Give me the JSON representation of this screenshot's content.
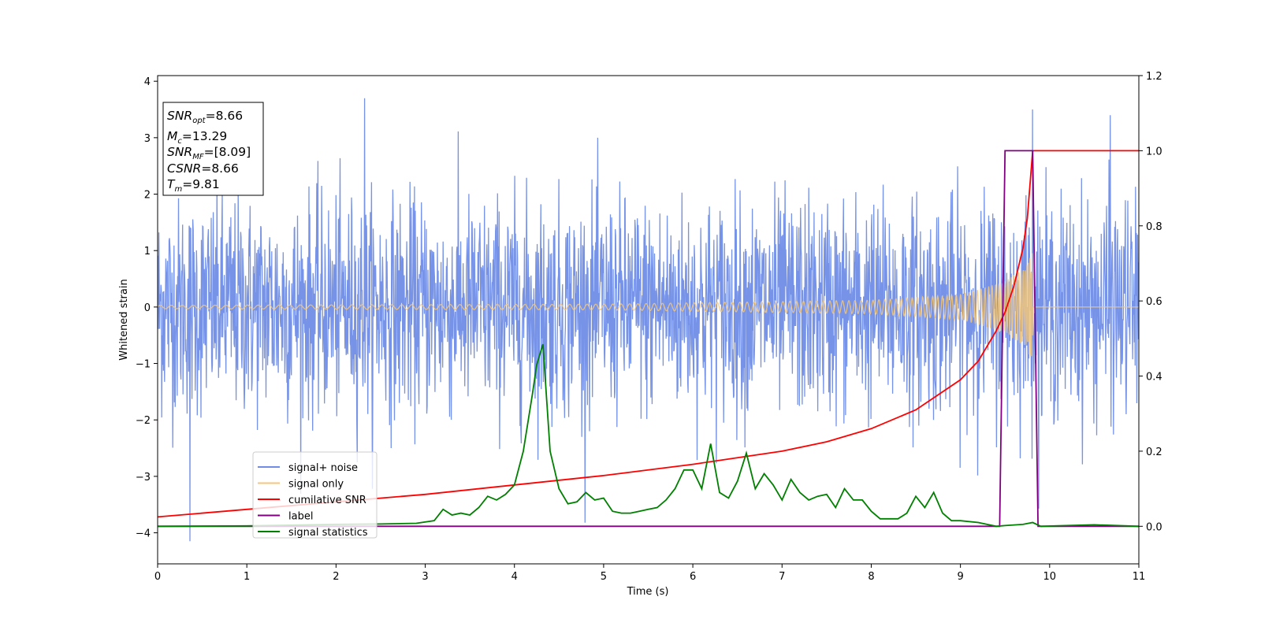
{
  "chart_data": {
    "type": "line",
    "xlabel": "Time (s)",
    "ylabel": "Whitened strain",
    "xlim": [
      0,
      11
    ],
    "ylim": [
      -4.55,
      4.1
    ],
    "y2lim": [
      -0.1,
      1.2
    ],
    "x_ticks": [
      0,
      1,
      2,
      3,
      4,
      5,
      6,
      7,
      8,
      9,
      10,
      11
    ],
    "y_ticks": [
      -4,
      -3,
      -2,
      -1,
      0,
      1,
      2,
      3,
      4
    ],
    "y_tick_labels": [
      "−4",
      "−3",
      "−2",
      "−1",
      "0",
      "1",
      "2",
      "3",
      "4"
    ],
    "y2_ticks": [
      0.0,
      0.2,
      0.4,
      0.6,
      0.8,
      1.0,
      1.2
    ],
    "y2_tick_labels": [
      "0.0",
      "0.2",
      "0.4",
      "0.6",
      "0.8",
      "1.0",
      "1.2"
    ],
    "grid": false,
    "legend_position": "lower-left",
    "info_box": {
      "snr_opt": "=8.66",
      "mc": "=13.29",
      "snr_mf": "=[8.09]",
      "csnr": "=8.66",
      "tm": "=9.81"
    },
    "series": [
      {
        "name": "signal+ noise",
        "axis": "left",
        "color": "#6f8de6",
        "description": "whitened strain noise, roughly Gaussian, amplitude up to ~3.7",
        "noise_std": 1.0,
        "notable_peaks": [
          [
            2.32,
            3.7
          ],
          [
            0.36,
            -4.15
          ],
          [
            9.81,
            3.5
          ],
          [
            10.68,
            3.4
          ]
        ]
      },
      {
        "name": "signal only",
        "axis": "left",
        "color": "#f5c77a",
        "description": "chirp growing in amplitude, merging near t=9.81",
        "merger_time": 9.81,
        "envelope": [
          [
            0,
            0.03
          ],
          [
            5,
            0.05
          ],
          [
            8,
            0.12
          ],
          [
            9,
            0.22
          ],
          [
            9.5,
            0.45
          ],
          [
            9.75,
            0.75
          ],
          [
            9.81,
            1.0
          ]
        ]
      },
      {
        "name": "cumilative SNR",
        "axis": "right",
        "color": "#ff0000",
        "x": [
          0,
          1,
          2,
          3,
          4,
          5,
          6,
          7,
          7.5,
          8,
          8.5,
          9,
          9.2,
          9.4,
          9.5,
          9.6,
          9.7,
          9.75,
          9.81,
          11
        ],
        "y": [
          0.025,
          0.045,
          0.065,
          0.085,
          0.11,
          0.135,
          0.165,
          0.2,
          0.225,
          0.26,
          0.31,
          0.39,
          0.44,
          0.52,
          0.57,
          0.64,
          0.74,
          0.82,
          1.0,
          1.0
        ]
      },
      {
        "name": "label",
        "axis": "right",
        "color": "#800080",
        "x": [
          0,
          9.44,
          9.5,
          9.81,
          9.87,
          11
        ],
        "y": [
          0,
          0,
          1,
          1,
          0,
          0
        ]
      },
      {
        "name": "signal statistics",
        "axis": "right",
        "color": "#008000",
        "x": [
          0,
          1,
          2,
          2.5,
          2.9,
          3.1,
          3.2,
          3.3,
          3.4,
          3.5,
          3.6,
          3.7,
          3.8,
          3.9,
          4.0,
          4.1,
          4.2,
          4.25,
          4.32,
          4.4,
          4.5,
          4.6,
          4.7,
          4.8,
          4.9,
          5.0,
          5.1,
          5.2,
          5.3,
          5.4,
          5.5,
          5.6,
          5.7,
          5.8,
          5.9,
          6.0,
          6.1,
          6.2,
          6.3,
          6.4,
          6.5,
          6.6,
          6.7,
          6.8,
          6.9,
          7.0,
          7.1,
          7.2,
          7.3,
          7.4,
          7.5,
          7.6,
          7.7,
          7.8,
          7.9,
          8.0,
          8.1,
          8.2,
          8.3,
          8.4,
          8.5,
          8.6,
          8.7,
          8.8,
          8.9,
          9.0,
          9.2,
          9.4,
          9.5,
          9.7,
          9.81,
          9.9,
          10.5,
          11
        ],
        "y": [
          0.0,
          0.001,
          0.005,
          0.006,
          0.008,
          0.015,
          0.045,
          0.03,
          0.035,
          0.03,
          0.05,
          0.08,
          0.07,
          0.085,
          0.11,
          0.2,
          0.35,
          0.43,
          0.485,
          0.2,
          0.1,
          0.06,
          0.065,
          0.09,
          0.07,
          0.075,
          0.04,
          0.035,
          0.035,
          0.04,
          0.045,
          0.05,
          0.07,
          0.1,
          0.15,
          0.15,
          0.1,
          0.22,
          0.09,
          0.075,
          0.12,
          0.195,
          0.1,
          0.14,
          0.11,
          0.07,
          0.125,
          0.09,
          0.07,
          0.08,
          0.085,
          0.05,
          0.1,
          0.07,
          0.07,
          0.04,
          0.02,
          0.02,
          0.02,
          0.035,
          0.08,
          0.05,
          0.09,
          0.035,
          0.015,
          0.015,
          0.01,
          0.0,
          0.002,
          0.005,
          0.01,
          0.0,
          0.004,
          0.0
        ]
      }
    ]
  }
}
